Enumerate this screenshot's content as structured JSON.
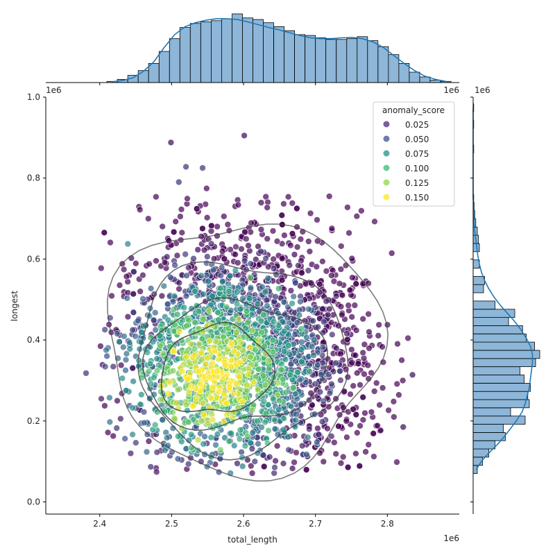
{
  "chart_data": {
    "type": "scatter",
    "xlabel": "total_length",
    "ylabel": "longest",
    "x_offset_text": "1e6",
    "y_offset_text": "1e6",
    "xlim": [
      2.325,
      2.9
    ],
    "ylim": [
      -0.03,
      1.0
    ],
    "x_ticks": [
      2.4,
      2.5,
      2.6,
      2.7,
      2.8
    ],
    "x_tick_labels": [
      "2.4",
      "2.5",
      "2.6",
      "2.7",
      "2.8"
    ],
    "y_ticks": [
      0.0,
      0.2,
      0.4,
      0.6,
      0.8,
      1.0
    ],
    "y_tick_labels": [
      "0.0",
      "0.2",
      "0.4",
      "0.6",
      "0.8",
      "1.0"
    ],
    "grid": false,
    "legend": {
      "title": "anomaly_score",
      "placement": "top-right",
      "entries": [
        {
          "label": "0.025",
          "color": "#472c7a"
        },
        {
          "label": "0.050",
          "color": "#3b528b"
        },
        {
          "label": "0.075",
          "color": "#21918c"
        },
        {
          "label": "0.100",
          "color": "#3bbb75"
        },
        {
          "label": "0.125",
          "color": "#8fd744"
        },
        {
          "label": "0.150",
          "color": "#fde725"
        }
      ]
    },
    "colormap": [
      "#440154",
      "#3b528b",
      "#21918c",
      "#5ec962",
      "#fde725"
    ],
    "point_cloud": {
      "count": 2600,
      "x_center": 2.6,
      "x_spread": 0.075,
      "y_center": 0.36,
      "y_spread": 0.145,
      "score_peak_x": 2.555,
      "score_peak_y": 0.31
    },
    "outliers": [
      {
        "x": 2.381,
        "y": 0.318,
        "score": 0.05
      },
      {
        "x": 2.601,
        "y": 0.905,
        "score": 0.02
      },
      {
        "x": 2.499,
        "y": 0.888,
        "score": 0.02
      },
      {
        "x": 2.835,
        "y": 0.314,
        "score": 0.02
      },
      {
        "x": 2.822,
        "y": 0.185,
        "score": 0.02
      },
      {
        "x": 2.52,
        "y": 0.828,
        "score": 0.05
      },
      {
        "x": 2.543,
        "y": 0.825,
        "score": 0.05
      },
      {
        "x": 2.51,
        "y": 0.79,
        "score": 0.05
      }
    ],
    "kde_contour_levels": [
      {
        "level": 1,
        "rx": 0.19,
        "ry": 0.31,
        "cx": 2.6,
        "cy": 0.385
      },
      {
        "level": 2,
        "rx": 0.145,
        "ry": 0.235,
        "cx": 2.595,
        "cy": 0.36
      },
      {
        "level": 3,
        "rx": 0.115,
        "ry": 0.17,
        "cx": 2.585,
        "cy": 0.34
      },
      {
        "level": 4,
        "rx": 0.07,
        "ry": 0.12,
        "cx": 2.562,
        "cy": 0.325
      }
    ],
    "marginal_x_hist": {
      "bin_edges_start": 2.41,
      "bin_width": 0.0145,
      "counts": [
        3,
        8,
        18,
        30,
        48,
        78,
        110,
        138,
        148,
        152,
        155,
        160,
        172,
        162,
        158,
        150,
        140,
        130,
        120,
        118,
        112,
        108,
        108,
        110,
        115,
        105,
        90,
        70,
        48,
        26,
        14,
        6,
        3
      ],
      "kde": [
        2,
        5,
        12,
        28,
        52,
        88,
        120,
        140,
        150,
        156,
        160,
        160,
        158,
        152,
        145,
        138,
        132,
        125,
        118,
        112,
        110,
        110,
        112,
        113,
        110,
        102,
        88,
        68,
        48,
        30,
        16,
        8,
        3
      ]
    },
    "marginal_y_hist": {
      "bin_edges_start": 0.07,
      "bin_width": 0.0203,
      "counts": [
        8,
        18,
        30,
        42,
        62,
        58,
        100,
        72,
        108,
        105,
        110,
        98,
        90,
        120,
        128,
        118,
        102,
        95,
        68,
        80,
        42,
        0,
        20,
        22,
        0,
        12,
        0,
        12,
        10,
        8,
        5,
        3,
        2,
        1,
        0,
        0,
        0,
        0,
        0,
        1,
        0,
        0,
        1,
        0,
        1
      ],
      "kde": [
        6,
        16,
        30,
        46,
        60,
        72,
        84,
        94,
        100,
        104,
        108,
        110,
        112,
        114,
        114,
        110,
        102,
        92,
        80,
        66,
        52,
        40,
        30,
        22,
        16,
        12,
        9,
        7,
        5,
        3,
        2,
        1,
        1,
        0,
        0,
        0,
        0,
        0,
        0,
        0,
        0,
        0,
        0,
        0,
        0
      ]
    }
  }
}
